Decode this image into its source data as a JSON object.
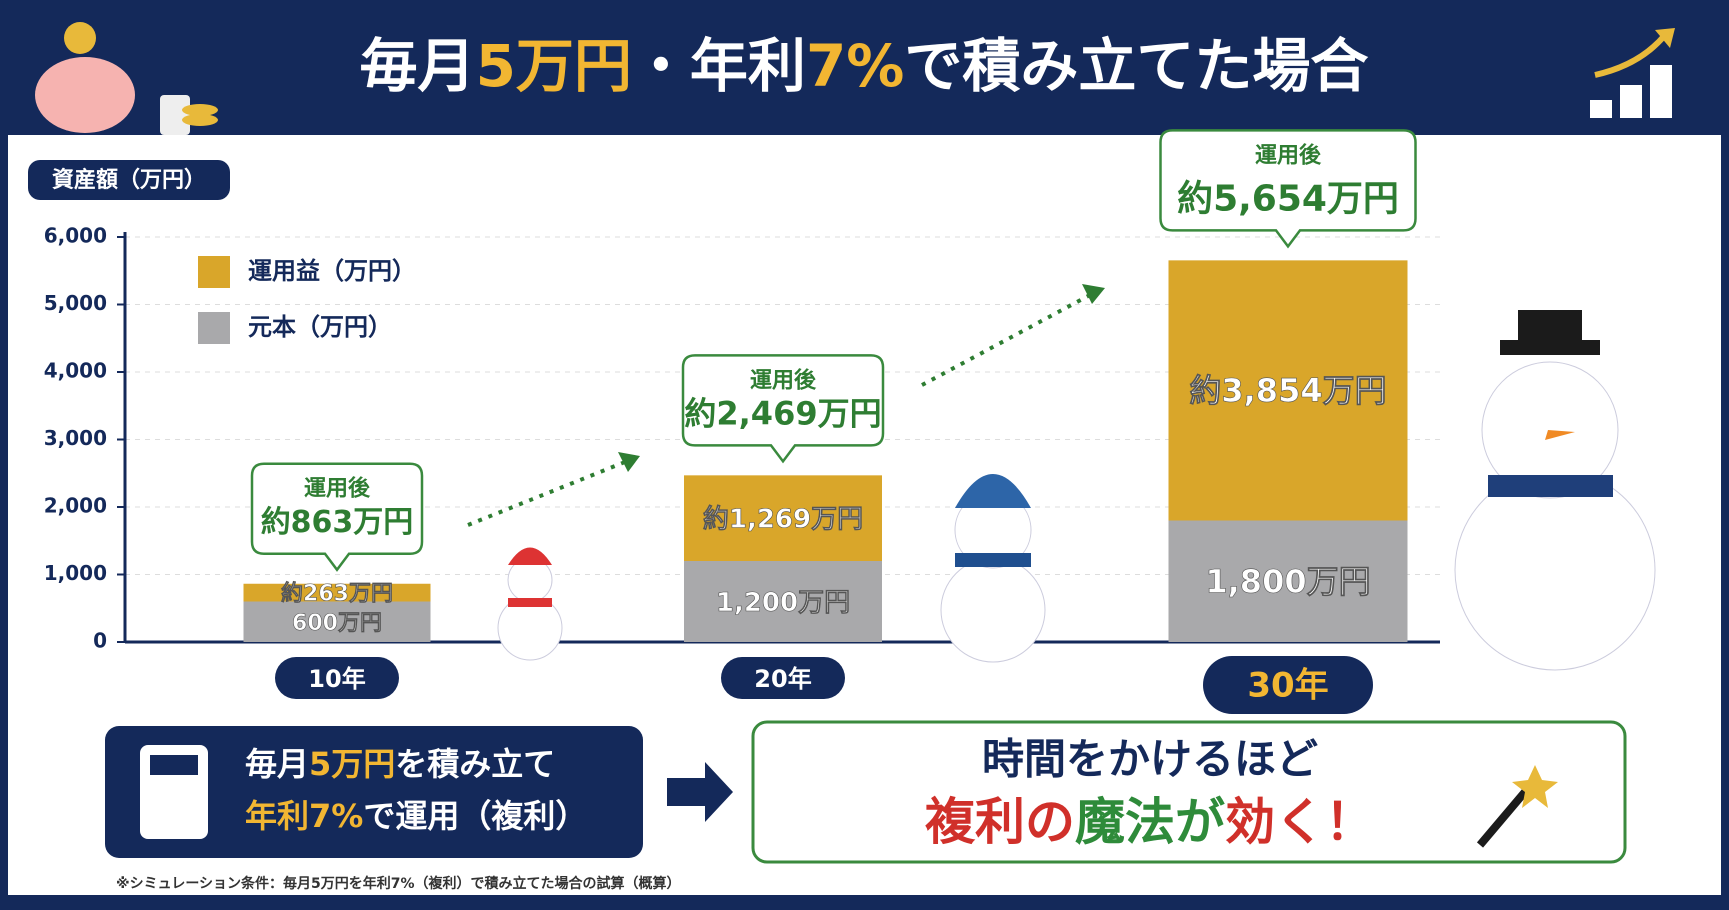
{
  "chart_data": {
    "type": "bar",
    "stacked": true,
    "title_parts": [
      "毎月",
      "5万円",
      "・年利",
      "7%",
      "で積み立てた場合"
    ],
    "y_label": "資産額（万円）",
    "categories": [
      "10年",
      "20年",
      "30年"
    ],
    "series": [
      {
        "name": "元本（万円）",
        "color": "#a9a9ab",
        "values": [
          600,
          1200,
          1800
        ],
        "value_labels": [
          "600万円",
          "1,200万円",
          "1,800万円"
        ]
      },
      {
        "name": "運用益（万円）",
        "color": "#d9a62a",
        "values": [
          263,
          1269,
          3854
        ],
        "value_labels": [
          "約263万円",
          "約1,269万円",
          "約3,854万円"
        ]
      }
    ],
    "total_caption": "運用後",
    "totals": [
      863,
      2469,
      5654
    ],
    "total_labels": [
      "約863万円",
      "約2,469万円",
      "約5,654万円"
    ],
    "ylim": [
      0,
      6000
    ],
    "yticks": [
      0,
      {
        "value": 1000,
        "label": "1,000"
      },
      {
        "value": 2000,
        "label": "2,000"
      },
      {
        "value": 3000,
        "label": "3,000"
      },
      {
        "value": 4000,
        "label": "4,000"
      },
      {
        "value": 5000,
        "label": "5,000"
      },
      {
        "value": 6000,
        "label": "6,000"
      }
    ],
    "grid": true
  },
  "condition_box": {
    "line1": [
      "毎月",
      "5万円",
      "を積み立て"
    ],
    "line2": [
      "年利",
      "7%",
      "で運用（複利）"
    ]
  },
  "message_box": {
    "line1": "時間をかけるほど",
    "line2": [
      "複利の",
      "魔法が",
      "効く！"
    ]
  },
  "footnote": "※シミュレーション条件：毎月5万円を年利7%（複利）で積み立てた場合の試算（概算）"
}
